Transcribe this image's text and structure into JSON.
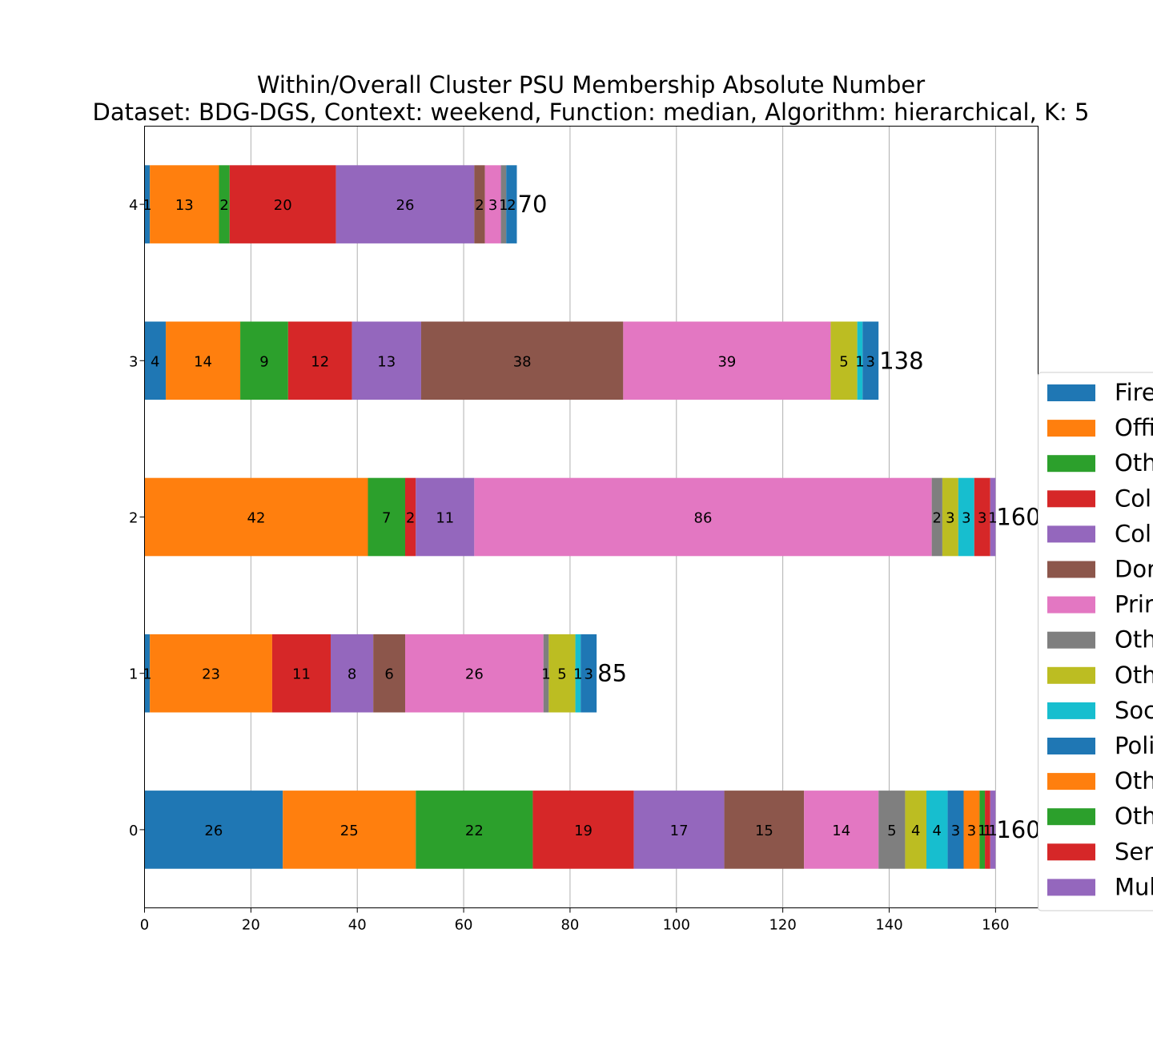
{
  "chart_data": {
    "type": "bar",
    "orientation": "horizontal",
    "stacked": true,
    "title": "Within/Overall Cluster PSU Membership Absolute Number",
    "subtitle": "Dataset: BDG-DGS, Context: weekend, Function: median, Algorithm: hierarchical, K: 5",
    "xlabel": "",
    "ylabel": "",
    "categories": [
      "0",
      "1",
      "2",
      "3",
      "4"
    ],
    "xlim": [
      0,
      168
    ],
    "xticks": [
      "0",
      "20",
      "40",
      "60",
      "80",
      "100",
      "120",
      "140",
      "160"
    ],
    "grid": "vertical",
    "legend_position": "right, clipped",
    "series": [
      {
        "name": "Fire",
        "color": "#1f77b4",
        "values": [
          26,
          1,
          0,
          4,
          1
        ]
      },
      {
        "name": "Offi",
        "color": "#ff7f0e",
        "values": [
          25,
          23,
          42,
          14,
          13
        ]
      },
      {
        "name": "Oth",
        "color": "#2ca02c",
        "values": [
          22,
          0,
          7,
          9,
          2
        ]
      },
      {
        "name": "Col",
        "color": "#d62728",
        "values": [
          19,
          11,
          2,
          12,
          20
        ]
      },
      {
        "name": "Col",
        "color": "#9467bd",
        "values": [
          17,
          8,
          11,
          13,
          26
        ]
      },
      {
        "name": "Dor",
        "color": "#8c564b",
        "values": [
          15,
          6,
          0,
          38,
          2
        ]
      },
      {
        "name": "Prir",
        "color": "#e377c2",
        "values": [
          14,
          26,
          86,
          39,
          3
        ]
      },
      {
        "name": "Oth",
        "color": "#7f7f7f",
        "values": [
          5,
          1,
          2,
          0,
          1
        ]
      },
      {
        "name": "Oth",
        "color": "#bcbd22",
        "values": [
          4,
          5,
          3,
          5,
          0
        ]
      },
      {
        "name": "Soc",
        "color": "#17becf",
        "values": [
          4,
          1,
          3,
          1,
          0
        ]
      },
      {
        "name": "Poli",
        "color": "#1f77b4",
        "values": [
          3,
          3,
          0,
          3,
          2
        ]
      },
      {
        "name": "Oth",
        "color": "#ff7f0e",
        "values": [
          3,
          0,
          0,
          0,
          0
        ]
      },
      {
        "name": "Oth",
        "color": "#2ca02c",
        "values": [
          1,
          0,
          0,
          0,
          0
        ]
      },
      {
        "name": "Ser",
        "color": "#d62728",
        "values": [
          1,
          0,
          3,
          0,
          0
        ]
      },
      {
        "name": "Mul",
        "color": "#9467bd",
        "values": [
          1,
          0,
          1,
          0,
          0
        ]
      }
    ],
    "totals": [
      160,
      85,
      160,
      138,
      70
    ]
  }
}
